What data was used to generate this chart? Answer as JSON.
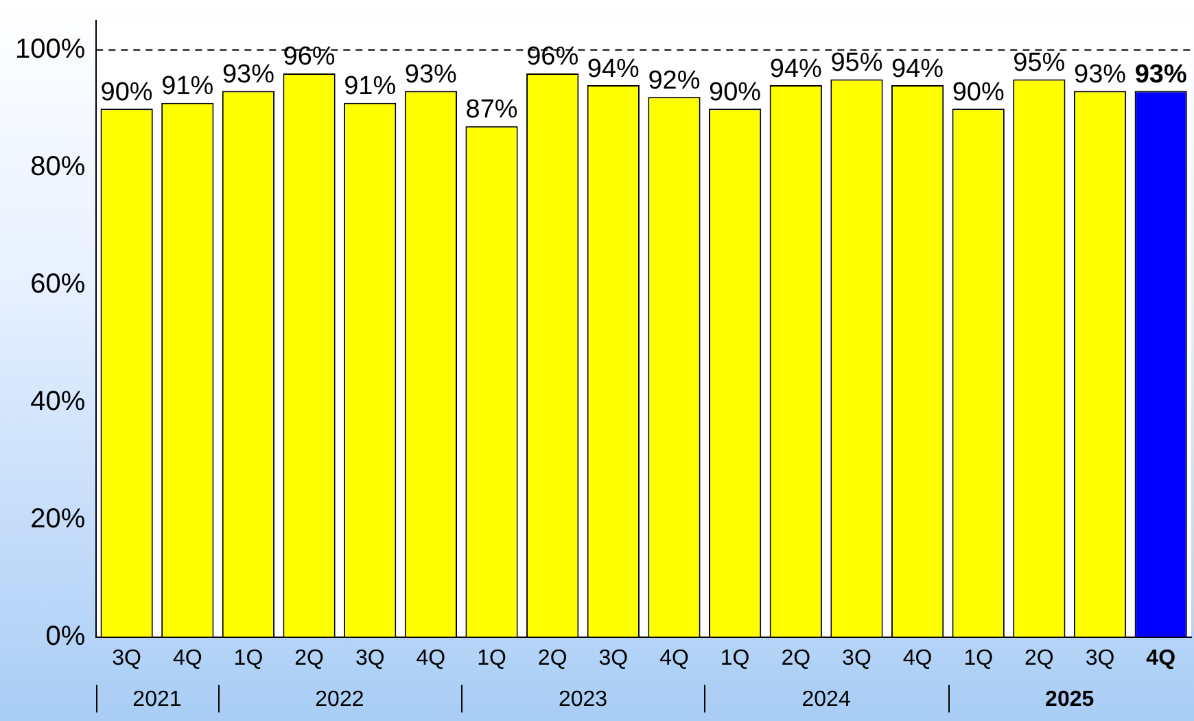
{
  "chart_data": {
    "type": "bar",
    "categories": [
      "3Q",
      "4Q",
      "1Q",
      "2Q",
      "3Q",
      "4Q",
      "1Q",
      "2Q",
      "3Q",
      "4Q",
      "1Q",
      "2Q",
      "3Q",
      "4Q",
      "1Q",
      "2Q",
      "3Q",
      "4Q"
    ],
    "values": [
      90,
      91,
      93,
      96,
      91,
      93,
      87,
      96,
      94,
      92,
      90,
      94,
      95,
      94,
      90,
      95,
      93,
      93
    ],
    "colors": [
      "#ffff00",
      "#ffff00",
      "#ffff00",
      "#ffff00",
      "#ffff00",
      "#ffff00",
      "#ffff00",
      "#ffff00",
      "#ffff00",
      "#ffff00",
      "#ffff00",
      "#ffff00",
      "#ffff00",
      "#ffff00",
      "#ffff00",
      "#ffff00",
      "#ffff00",
      "#0000ff"
    ],
    "value_labels": [
      "90%",
      "91%",
      "93%",
      "96%",
      "91%",
      "93%",
      "87%",
      "96%",
      "94%",
      "92%",
      "90%",
      "94%",
      "95%",
      "94%",
      "90%",
      "95%",
      "93%",
      "93%"
    ],
    "ylim": [
      0,
      105
    ],
    "yticks": [
      {
        "value": 0,
        "label": "0%"
      },
      {
        "value": 20,
        "label": "20%"
      },
      {
        "value": 40,
        "label": "40%"
      },
      {
        "value": 60,
        "label": "60%"
      },
      {
        "value": 80,
        "label": "80%"
      },
      {
        "value": 100,
        "label": "100%"
      }
    ],
    "grid": false,
    "legend": false,
    "ref_lines": [
      {
        "axis": "y",
        "value": 100,
        "line_style": "dashed",
        "color": "#000000"
      }
    ],
    "annotations": [
      "2021",
      "2022",
      "2023",
      "2024",
      "2025"
    ]
  }
}
